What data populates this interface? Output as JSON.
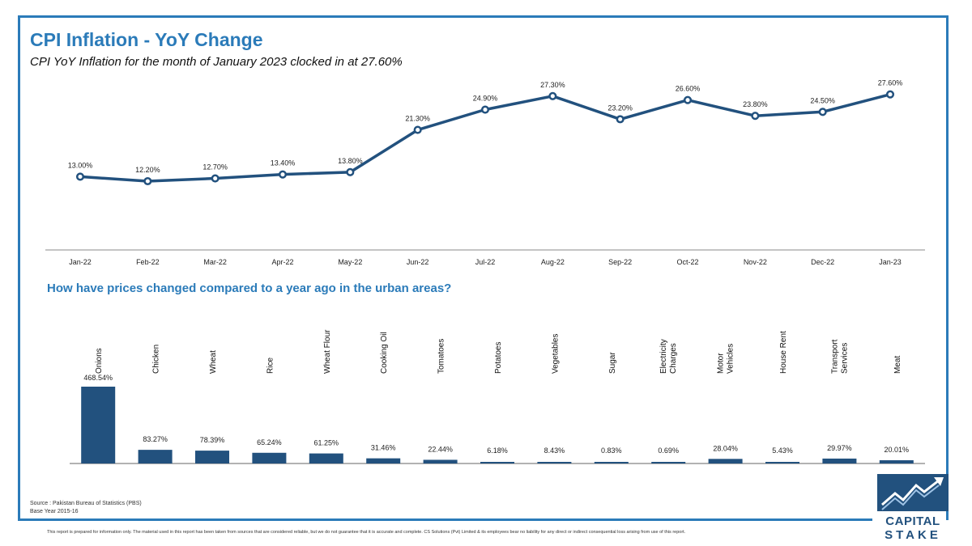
{
  "header": {
    "title": "CPI Inflation - YoY Change",
    "subtitle": "CPI YoY Inflation for the month of January 2023 clocked in at 27.60%"
  },
  "section": {
    "bar_title": "How have prices changed compared to a year ago in the urban areas?"
  },
  "footer": {
    "source_line1": "Source : Pakistan Bureau of Statistics (PBS)",
    "source_line2": "Base Year 2015-16",
    "disclaimer": "This report is prepared for information only. The material used in this report has been taken from sources that are considered reliable, but we do not guarantee that it is accurate and complete. CS Solutions (Pvt) Limited & its employees bear no liability for any direct or indirect consequential loss arising from use of this report."
  },
  "logo": {
    "line1": "CAPITAL",
    "line2": "STAKE"
  },
  "colors": {
    "accent": "#2b7bb9",
    "series": "#22517e",
    "axis": "#555555"
  },
  "chart_data": [
    {
      "type": "line",
      "title": "",
      "categories": [
        "Jan-22",
        "Feb-22",
        "Mar-22",
        "Apr-22",
        "May-22",
        "Jun-22",
        "Jul-22",
        "Aug-22",
        "Sep-22",
        "Oct-22",
        "Nov-22",
        "Dec-22",
        "Jan-23"
      ],
      "values": [
        13.0,
        12.2,
        12.7,
        13.4,
        13.8,
        21.3,
        24.9,
        27.3,
        23.2,
        26.6,
        23.8,
        24.5,
        27.6
      ],
      "data_labels": [
        "13.00%",
        "12.20%",
        "12.70%",
        "13.40%",
        "13.80%",
        "21.30%",
        "24.90%",
        "27.30%",
        "23.20%",
        "26.60%",
        "23.80%",
        "24.50%",
        "27.60%"
      ],
      "grid": false
    },
    {
      "type": "bar",
      "title": "How have prices changed compared to a year ago in the urban areas?",
      "categories": [
        "Onions",
        "Chicken",
        "Wheat",
        "Rice",
        "Wheat Flour",
        "Cooking Oil",
        "Tomatoes",
        "Potatoes",
        "Vegetables",
        "Sugar",
        "Electricity Charges",
        "Motor Vehicles",
        "House Rent",
        "Transport Services",
        "Meat"
      ],
      "values": [
        468.54,
        83.27,
        78.39,
        65.24,
        61.25,
        31.46,
        22.44,
        6.18,
        8.43,
        0.83,
        0.69,
        28.04,
        5.43,
        29.97,
        20.01
      ],
      "data_labels": [
        "468.54%",
        "83.27%",
        "78.39%",
        "65.24%",
        "61.25%",
        "31.46%",
        "22.44%",
        "6.18%",
        "8.43%",
        "0.83%",
        "0.69%",
        "28.04%",
        "5.43%",
        "29.97%",
        "20.01%"
      ],
      "grid": false
    }
  ]
}
